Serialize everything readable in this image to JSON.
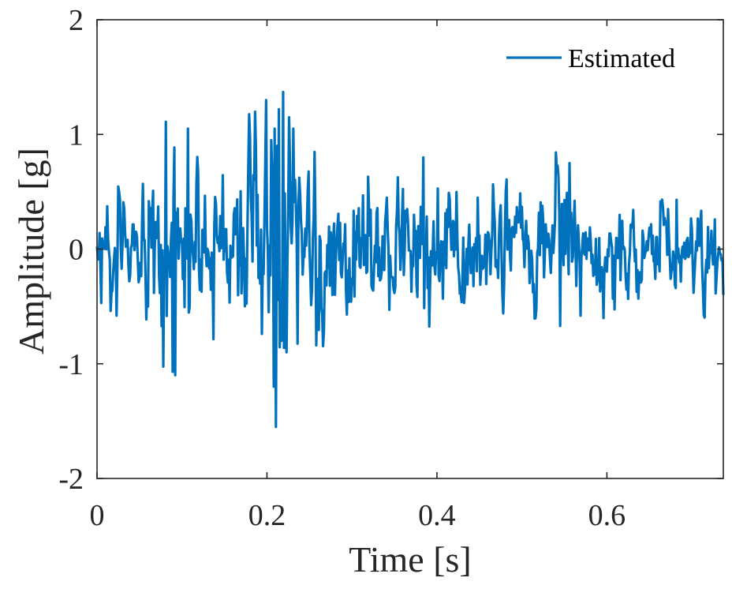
{
  "colors": {
    "series": "#0072BD",
    "axis": "#262626",
    "background": "#ffffff"
  },
  "chart_data": {
    "type": "line",
    "title": "",
    "xlabel": "Time [s]",
    "ylabel": "Amplitude [g]",
    "xlim": [
      0,
      0.737
    ],
    "ylim": [
      -2,
      2
    ],
    "xticks": [
      0,
      0.2,
      0.4,
      0.6
    ],
    "xtick_labels": [
      "0",
      "0.2",
      "0.4",
      "0.6"
    ],
    "yticks": [
      -2,
      -1,
      0,
      1,
      2
    ],
    "ytick_labels": [
      "-2",
      "-1",
      "0",
      "1",
      "2"
    ],
    "grid": false,
    "legend": {
      "position": "top-right",
      "entries": [
        "Estimated"
      ]
    },
    "sample_interval": 0.001,
    "envelope_anchors": [
      [
        0.0,
        0.3
      ],
      [
        0.02,
        0.45
      ],
      [
        0.05,
        0.4
      ],
      [
        0.07,
        0.7
      ],
      [
        0.09,
        0.95
      ],
      [
        0.11,
        0.75
      ],
      [
        0.13,
        0.45
      ],
      [
        0.16,
        0.55
      ],
      [
        0.19,
        0.95
      ],
      [
        0.21,
        1.2
      ],
      [
        0.23,
        0.95
      ],
      [
        0.26,
        0.75
      ],
      [
        0.29,
        0.7
      ],
      [
        0.32,
        0.55
      ],
      [
        0.35,
        0.45
      ],
      [
        0.38,
        0.55
      ],
      [
        0.4,
        0.55
      ],
      [
        0.43,
        0.45
      ],
      [
        0.47,
        0.4
      ],
      [
        0.5,
        0.45
      ],
      [
        0.53,
        0.55
      ],
      [
        0.55,
        0.65
      ],
      [
        0.58,
        0.5
      ],
      [
        0.61,
        0.4
      ],
      [
        0.65,
        0.35
      ],
      [
        0.69,
        0.4
      ],
      [
        0.72,
        0.45
      ],
      [
        0.737,
        0.4
      ]
    ],
    "series": [
      {
        "name": "Estimated",
        "generated": true,
        "seed": 20240521,
        "landmarks": [
          [
            0.0,
            0.02
          ],
          [
            0.003,
            0.14
          ],
          [
            0.0035,
            0.0
          ],
          [
            0.005,
            -0.47
          ],
          [
            0.081,
            1.11
          ],
          [
            0.089,
            -1.07
          ],
          [
            0.092,
            -1.1
          ],
          [
            0.107,
            1.05
          ],
          [
            0.199,
            1.3
          ],
          [
            0.202,
            -0.55
          ],
          [
            0.205,
            0.95
          ],
          [
            0.208,
            -1.2
          ],
          [
            0.209,
            1.05
          ],
          [
            0.2105,
            -1.55
          ],
          [
            0.212,
            0.9
          ],
          [
            0.214,
            1.22
          ],
          [
            0.217,
            -0.8
          ],
          [
            0.219,
            1.37
          ],
          [
            0.222,
            -0.7
          ],
          [
            0.231,
            1.05
          ],
          [
            0.384,
            0.8
          ],
          [
            0.556,
            0.75
          ],
          [
            0.545,
            -0.67
          ],
          [
            0.737,
            -0.4
          ]
        ]
      }
    ]
  }
}
